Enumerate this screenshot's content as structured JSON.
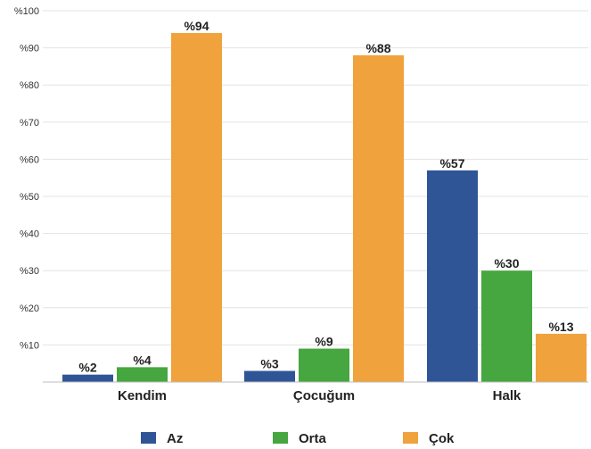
{
  "chart_data": {
    "type": "bar",
    "categories": [
      "Kendim",
      "Çocuğum",
      "Halk"
    ],
    "series": [
      {
        "name": "Az",
        "color": "#2f5597",
        "values": [
          2,
          3,
          57
        ]
      },
      {
        "name": "Orta",
        "color": "#46a63f",
        "values": [
          4,
          9,
          30
        ]
      },
      {
        "name": "Çok",
        "color": "#f0a23c",
        "values": [
          94,
          88,
          13
        ]
      }
    ],
    "ylim": [
      0,
      100
    ],
    "yticks": [
      10,
      20,
      30,
      40,
      50,
      60,
      70,
      80,
      90,
      100
    ],
    "ytick_prefix": "%",
    "data_label_prefix": "%",
    "grid": true,
    "legend_position": "bottom"
  }
}
